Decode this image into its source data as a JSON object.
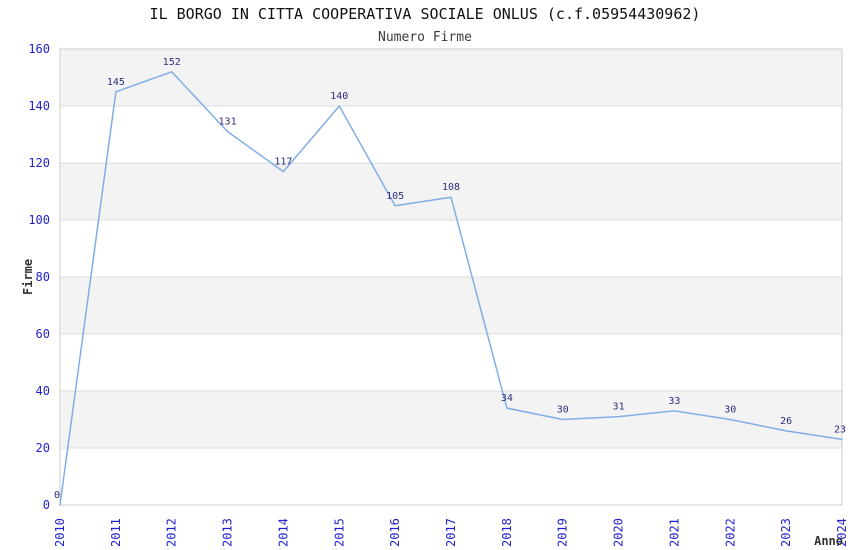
{
  "chart": {
    "title": "IL BORGO IN CITTA COOPERATIVA SOCIALE ONLUS (c.f.05954430962)",
    "subtitle": "Numero Firme"
  },
  "chart_data": {
    "type": "line",
    "title": "IL BORGO IN CITTA COOPERATIVA SOCIALE ONLUS (c.f.05954430962)",
    "subtitle": "Numero Firme",
    "xlabel": "Anno",
    "ylabel": "Firme",
    "categories": [
      "2010",
      "2011",
      "2012",
      "2013",
      "2014",
      "2015",
      "2016",
      "2017",
      "2018",
      "2019",
      "2020",
      "2021",
      "2022",
      "2023",
      "2024"
    ],
    "series": [
      {
        "name": "Numero Firme",
        "values": [
          0,
          145,
          152,
          131,
          117,
          140,
          105,
          108,
          34,
          30,
          31,
          33,
          30,
          26,
          23
        ]
      }
    ],
    "data_labels_visible": true,
    "ylim": [
      0,
      160
    ],
    "ytick_step": 20,
    "yticks": [
      0,
      20,
      40,
      60,
      80,
      100,
      120,
      140,
      160
    ],
    "grid": "horizontal-bands",
    "gray_bands": [
      [
        20,
        40
      ],
      [
        60,
        80
      ],
      [
        100,
        120
      ],
      [
        140,
        160
      ]
    ],
    "legend": "none",
    "colors": {
      "line": "#82aee6",
      "data_label": "#2d2d7d",
      "tick_label": "#2323cd",
      "band_fill": "#f3f3f3",
      "gridline": "#dedede",
      "plot_border": "#cccccc",
      "title": "#111111",
      "subtitle": "#3c3c3c",
      "axis_title": "#333333",
      "plot_background": "#ffffff"
    }
  }
}
